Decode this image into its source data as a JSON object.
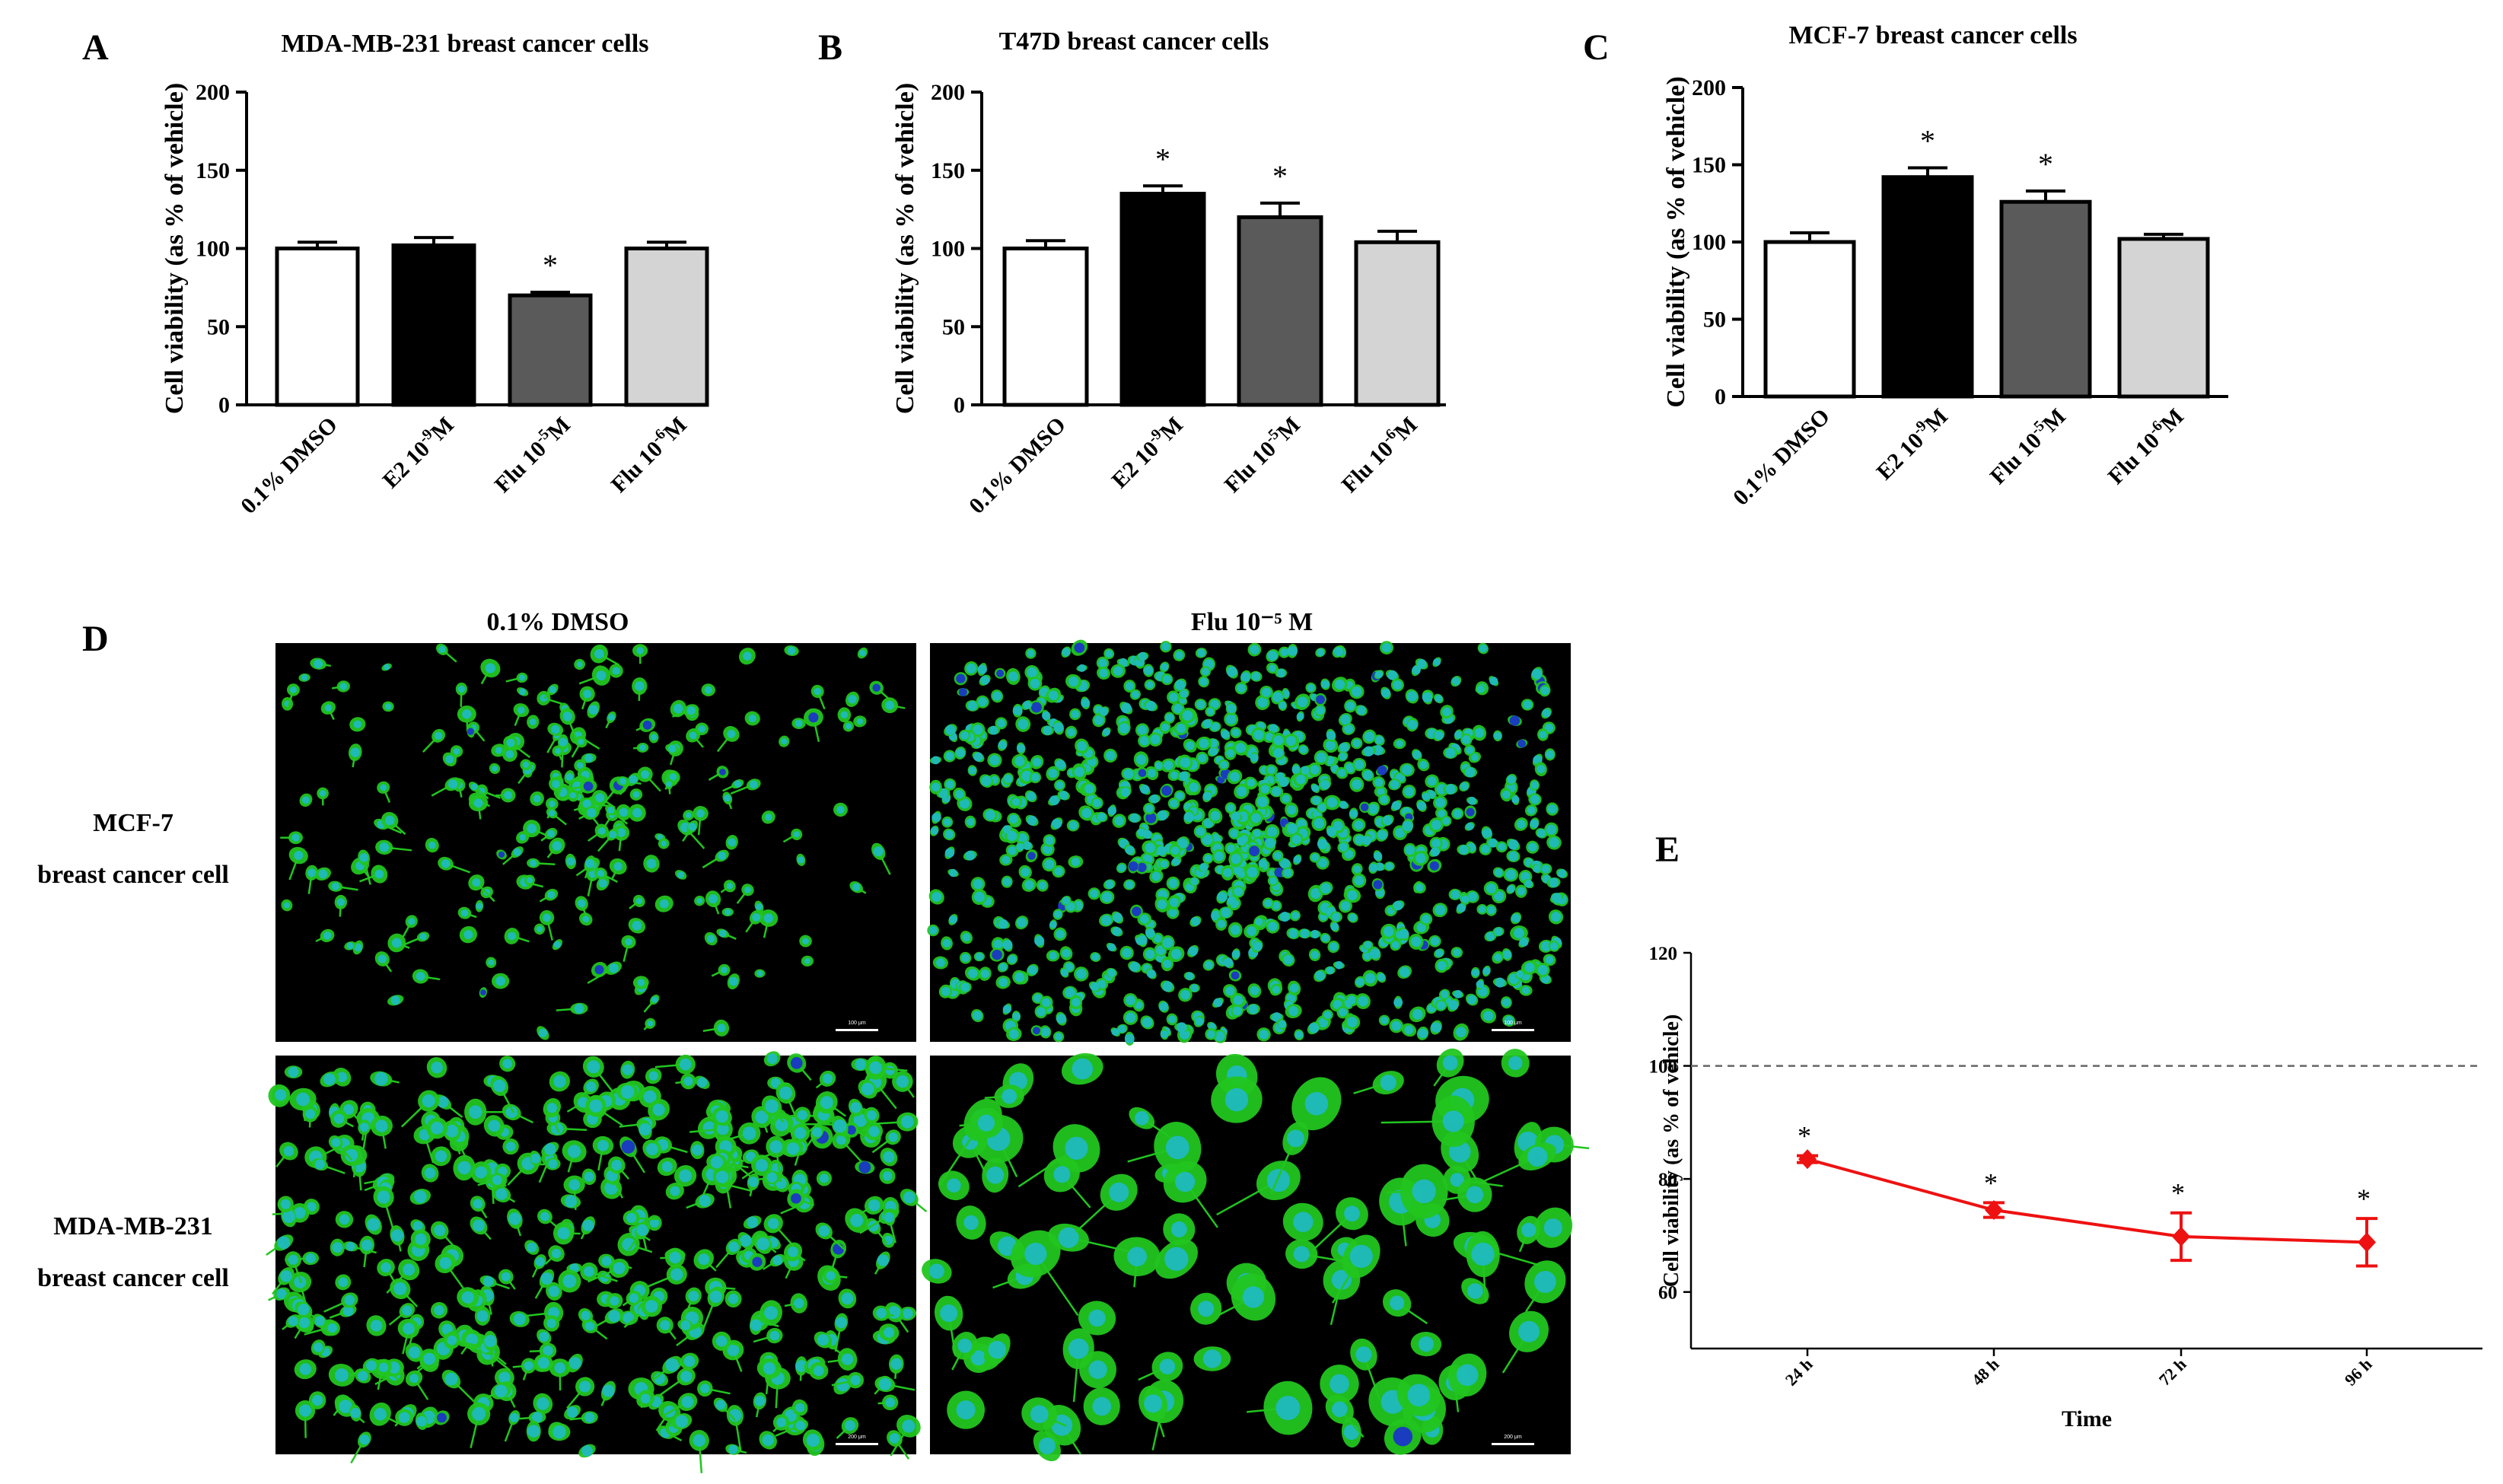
{
  "figure": {
    "panels": {
      "A": {
        "label": "A"
      },
      "B": {
        "label": "B"
      },
      "C": {
        "label": "C"
      },
      "D": {
        "label": "D",
        "col_labels": [
          "0.1% DMSO",
          "Flu 10⁻⁵ M"
        ],
        "row_labels": [
          [
            "MCF-7",
            "breast cancer cell"
          ],
          [
            "MDA-MB-231",
            "breast cancer cell"
          ]
        ],
        "scale_bars": [
          "100 μm",
          "100 μm",
          "200 μm",
          "200 μm"
        ]
      },
      "E": {
        "label": "E"
      }
    },
    "colors": {
      "dmso": "#ffffff",
      "e2": "#000000",
      "flu5": "#5a5a5a",
      "flu6": "#d4d4d4",
      "line_e": "#ee1111",
      "cell_green": "#22c51f",
      "nucleus_cyan": "#1fb9c8",
      "nucleus_blue": "#1a2fd0"
    }
  },
  "chart_data": [
    {
      "id": "A",
      "type": "bar",
      "title": "MDA-MB-231 breast cancer cells",
      "ylabel": "Cell viability (as % of vehicle)",
      "xlabel": "",
      "categories": [
        "0.1% DMSO",
        "E2 10⁻⁹M",
        "Flu 10⁻⁵M",
        "Flu 10⁻⁶M"
      ],
      "values": [
        100,
        102,
        70,
        100
      ],
      "errors": [
        4,
        5,
        2,
        4
      ],
      "significance": [
        "",
        "",
        "*",
        ""
      ],
      "ylim": [
        0,
        200
      ],
      "yticks": [
        0,
        50,
        100,
        150,
        200
      ]
    },
    {
      "id": "B",
      "type": "bar",
      "title": "T47D breast cancer cells",
      "ylabel": "Cell viability (as  % of vehicle)",
      "xlabel": "",
      "categories": [
        "0.1% DMSO",
        "E2 10⁻⁹M",
        "Flu 10⁻⁵M",
        "Flu 10⁻⁶M"
      ],
      "values": [
        100,
        135,
        120,
        104
      ],
      "errors": [
        5,
        5,
        9,
        7
      ],
      "significance": [
        "",
        "*",
        "*",
        ""
      ],
      "ylim": [
        0,
        200
      ],
      "yticks": [
        0,
        50,
        100,
        150,
        200
      ]
    },
    {
      "id": "C",
      "type": "bar",
      "title": "MCF-7 breast cancer cells",
      "ylabel": "Cell viability (as % of vehicle)",
      "xlabel": "",
      "categories": [
        "0.1% DMSO",
        "E2 10⁻⁹M",
        "Flu 10⁻⁵M",
        "Flu 10⁻⁶M"
      ],
      "values": [
        100,
        142,
        126,
        102
      ],
      "errors": [
        6,
        6,
        7,
        3
      ],
      "significance": [
        "",
        "*",
        "*",
        ""
      ],
      "ylim": [
        0,
        200
      ],
      "yticks": [
        0,
        50,
        100,
        150,
        200
      ]
    },
    {
      "id": "E",
      "type": "line",
      "title": "",
      "ylabel": "Cell viability (as % of vehicle)",
      "xlabel": "Time",
      "categories": [
        "24 h",
        "48 h",
        "72 h",
        "96 h"
      ],
      "values": [
        83.5,
        74.5,
        69.8,
        68.8
      ],
      "errors": [
        0.6,
        1.3,
        4.2,
        4.2
      ],
      "significance": [
        "*",
        "*",
        "*",
        "*"
      ],
      "reference_line": 100,
      "ylim": [
        50,
        120
      ],
      "yticks": [
        60,
        80,
        100,
        120
      ]
    }
  ]
}
